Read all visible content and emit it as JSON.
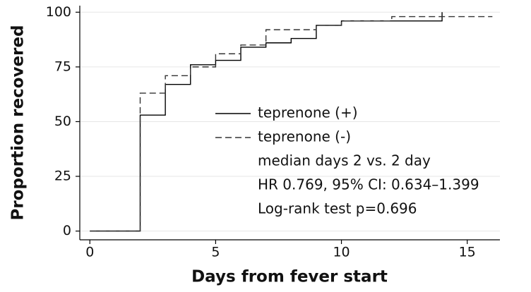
{
  "chart_data": {
    "type": "line",
    "step": true,
    "xlabel": "Days from fever start",
    "ylabel": "Proportion recovered",
    "xlim": [
      -0.4,
      16.3
    ],
    "ylim": [
      -4,
      103
    ],
    "xticks": [
      0,
      5,
      10,
      15
    ],
    "yticks": [
      0,
      25,
      50,
      75,
      100
    ],
    "grid": true,
    "legend": "center",
    "series": [
      {
        "name": "teprenone (+)",
        "color": "#000000",
        "style": "solid",
        "x": [
          0,
          2,
          3,
          4,
          5,
          6,
          7,
          8,
          9,
          10,
          14
        ],
        "values": [
          0,
          53,
          67,
          76,
          78,
          84,
          86,
          88,
          94,
          96,
          100
        ]
      },
      {
        "name": "teprenone (-)",
        "color": "#333333",
        "style": "dashed",
        "x": [
          0,
          2,
          3,
          4,
          5,
          6,
          7,
          9,
          10,
          12,
          16
        ],
        "values": [
          0,
          63,
          71,
          75,
          81,
          85,
          92,
          94,
          96,
          98,
          98
        ]
      }
    ],
    "annotations": [
      "median days 2 vs. 2 day",
      "HR 0.769, 95% CI: 0.634–1.399",
      "Log-rank test p=0.696"
    ]
  }
}
